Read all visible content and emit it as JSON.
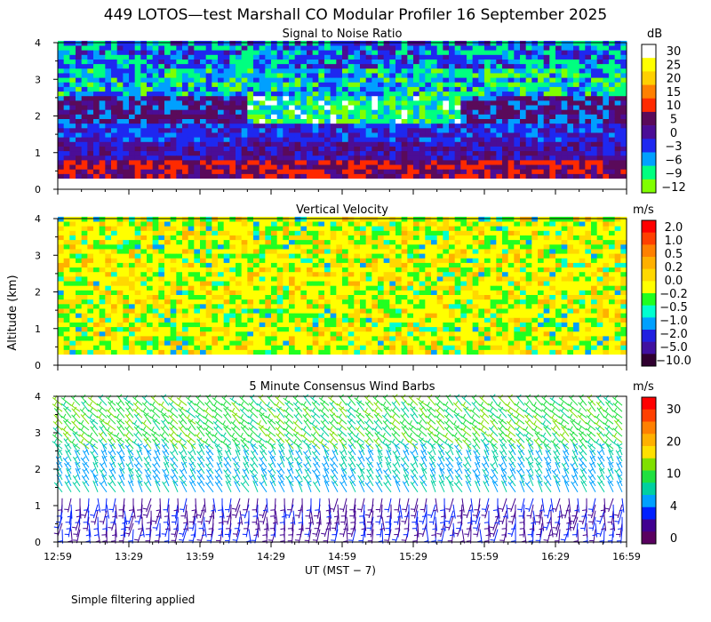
{
  "title": "449 LOTOS—test Marshall CO Modular Profiler 16 September 2025",
  "y_axis_label": "Altitude (km)",
  "x_axis_label": "UT  (MST − 7)",
  "footnote": "Simple filtering applied",
  "chart_data": [
    {
      "type": "heatmap",
      "title": "Signal to Noise Ratio",
      "x_ticks": [
        "12:59",
        "13:29",
        "13:59",
        "14:29",
        "14:59",
        "15:29",
        "15:59",
        "16:29",
        "16:59"
      ],
      "y_ticks": [
        "0",
        "1",
        "2",
        "3",
        "4"
      ],
      "ylim": [
        0,
        4
      ],
      "colorbar": {
        "unit": "dB",
        "labels": [
          "30",
          "25",
          "20",
          "15",
          "10",
          "5",
          "0",
          "−3",
          "−6",
          "−9",
          "−12"
        ],
        "colors": [
          "#ffffff",
          "#ffff00",
          "#ffd000",
          "#ff8000",
          "#ff2a00",
          "#5a0a5a",
          "#4b0d96",
          "#1e28f0",
          "#00a0ff",
          "#00ff80",
          "#80ff00"
        ]
      }
    },
    {
      "type": "heatmap",
      "title": "Vertical Velocity",
      "x_ticks": [
        "12:59",
        "13:29",
        "13:59",
        "14:29",
        "14:59",
        "15:29",
        "15:59",
        "16:29",
        "16:59"
      ],
      "y_ticks": [
        "0",
        "1",
        "2",
        "3",
        "4"
      ],
      "ylim": [
        0,
        4
      ],
      "colorbar": {
        "unit": "m/s",
        "labels": [
          "2.0",
          "1.0",
          "0.5",
          "0.2",
          "0.0",
          "−0.2",
          "−0.5",
          "−1.0",
          "−2.0",
          "−5.0",
          "−10.0"
        ],
        "colors": [
          "#ff0000",
          "#ff4000",
          "#ff8000",
          "#ffb000",
          "#ffd800",
          "#ffff00",
          "#20ff20",
          "#00ffd0",
          "#00a0ff",
          "#2020e0",
          "#4010a0",
          "#300030"
        ]
      }
    },
    {
      "type": "heatmap",
      "title": "5 Minute Consensus Wind Barbs",
      "x_ticks": [
        "12:59",
        "13:29",
        "13:59",
        "14:29",
        "14:59",
        "15:29",
        "15:59",
        "16:29",
        "16:59"
      ],
      "y_ticks": [
        "0",
        "1",
        "2",
        "3",
        "4"
      ],
      "ylim": [
        0,
        4
      ],
      "colorbar": {
        "unit": "m/s",
        "labels": [
          "30",
          "20",
          "10",
          "4",
          "0"
        ],
        "colors": [
          "#ff0000",
          "#ff4000",
          "#ff8000",
          "#ffb000",
          "#ffe000",
          "#80e000",
          "#20e040",
          "#00d0a0",
          "#00a0ff",
          "#0020ff",
          "#400090",
          "#5a0060"
        ]
      }
    }
  ]
}
